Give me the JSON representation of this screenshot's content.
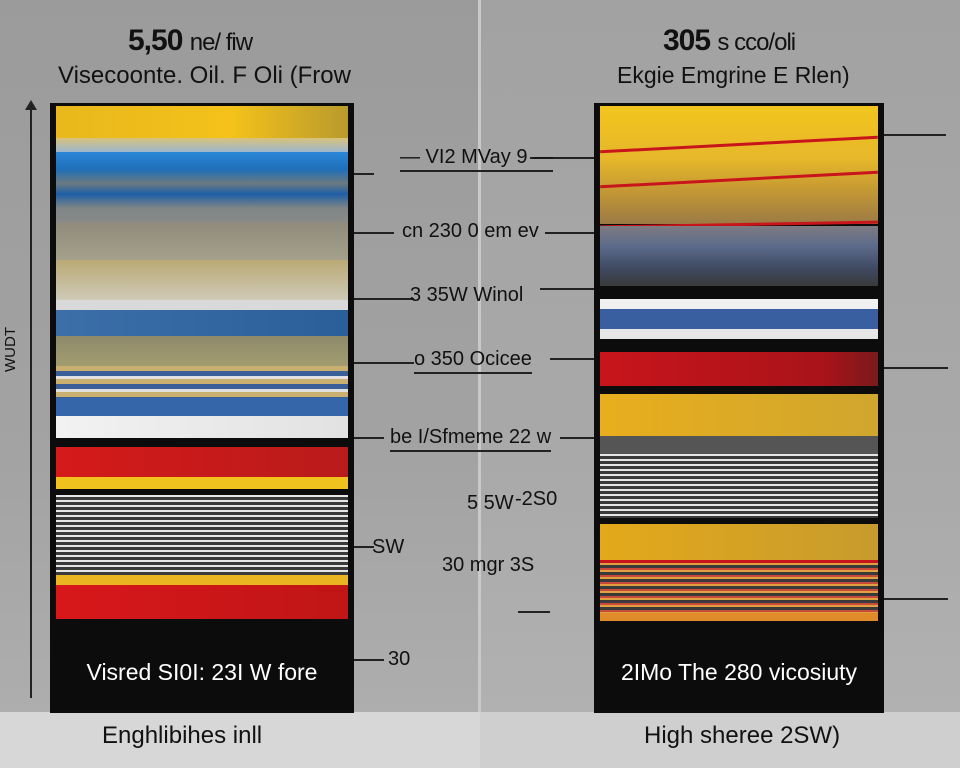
{
  "left_panel": {
    "title_number": "5,50",
    "title_rest": "ne/ fiw",
    "subtitle": "Visecoonte. Oil. F Oli  (Frow",
    "y_axis_label": "WUDT",
    "column_footer": "Visred SI0I: 23I W fore",
    "caption": "Enghlibihes inll"
  },
  "right_panel": {
    "title_number": "305",
    "title_rest": "s cco/oli",
    "subtitle": "Ekgie Emgrine E Rlen)",
    "column_footer": "2IMo The 280 vicosiuty",
    "caption": "High sheree 2SW)"
  },
  "callouts": {
    "c1": "— VI2 MVay 9 —",
    "c2": "cn 230 0 em ev",
    "c3": "3 35W Winol",
    "c4": "o 350 Ocicee",
    "c5": "be I/Sfmeme 22 w",
    "c6": "5 5W",
    "c7": "-2S0",
    "c8": "SW",
    "c9": "30 mgr 3S",
    "c10": "30"
  },
  "colors": {
    "yellow": "#f4c21a",
    "blue": "#2f7fd0",
    "red": "#c8151b",
    "black": "#0c0c0c",
    "gray": "#7a7a7a"
  },
  "icons": [
    "y-axis-arrow-icon"
  ]
}
